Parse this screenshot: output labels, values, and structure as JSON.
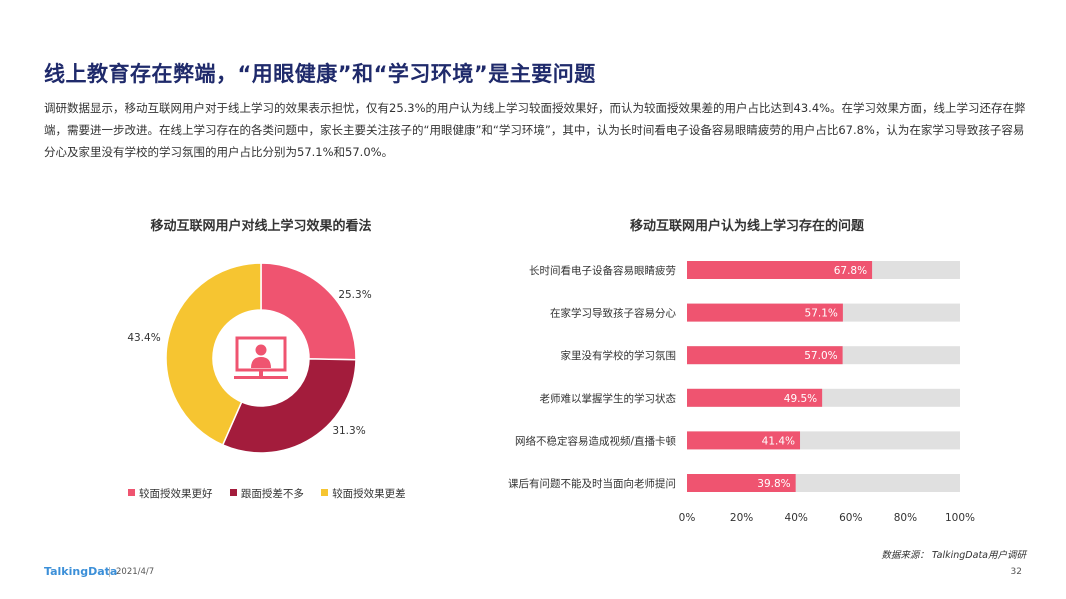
{
  "page": {
    "title": "线上教育存在弊端，“用眼健康”和“学习环境”是主要问题",
    "intro": "调研数据显示，移动互联网用户对于线上学习的效果表示担忧，仅有25.3%的用户认为线上学习较面授效果好，而认为较面授效果差的用户占比达到43.4%。在学习效果方面，线上学习还存在弊端，需要进一步改进。在线上学习存在的各类问题中，家长主要关注孩子的“用眼健康”和“学习环境”，其中，认为长时间看电子设备容易眼睛疲劳的用户占比67.8%，认为在家学习导致孩子容易分心及家里没有学校的学习氛围的用户占比分别为57.1%和57.0%。",
    "source": "数据来源：  TalkingData用户调研",
    "brand": "TalkingData",
    "date": "2021/4/7",
    "page_number": "32"
  },
  "colors": {
    "pink": "#ef5470",
    "dark_red": "#a31c3c",
    "yellow": "#f6c531",
    "track": "#e0e0e0",
    "title_navy": "#1f2a6b",
    "icon": "#ef5470"
  },
  "center_icon": "presenter-screen-icon",
  "chart_data": [
    {
      "type": "pie",
      "title": "移动互联网用户对线上学习效果的看法",
      "donut": true,
      "legend_position": "bottom",
      "slices": [
        {
          "label": "较面授效果更好",
          "value": 25.3,
          "display": "25.3%",
          "color": "#ef5470"
        },
        {
          "label": "跟面授差不多",
          "value": 31.3,
          "display": "31.3%",
          "color": "#a31c3c"
        },
        {
          "label": "较面授效果更差",
          "value": 43.4,
          "display": "43.4%",
          "color": "#f6c531"
        }
      ]
    },
    {
      "type": "bar",
      "orientation": "horizontal",
      "title": "移动互联网用户认为线上学习存在的问题",
      "xlim": [
        0,
        100
      ],
      "xticks": [
        "0%",
        "20%",
        "40%",
        "60%",
        "80%",
        "100%"
      ],
      "xtick_values": [
        0,
        20,
        40,
        60,
        80,
        100
      ],
      "categories": [
        "长时间看电子设备容易眼睛疲劳",
        "在家学习导致孩子容易分心",
        "家里没有学校的学习氛围",
        "老师难以掌握学生的学习状态",
        "网络不稳定容易造成视频/直播卡顿",
        "课后有问题不能及时当面向老师提问"
      ],
      "values": [
        67.8,
        57.1,
        57.0,
        49.5,
        41.4,
        39.8
      ],
      "value_labels": [
        "67.8%",
        "57.1%",
        "57.0%",
        "49.5%",
        "41.4%",
        "39.8%"
      ],
      "bar_color": "#ef5470",
      "track_color": "#e0e0e0"
    }
  ]
}
